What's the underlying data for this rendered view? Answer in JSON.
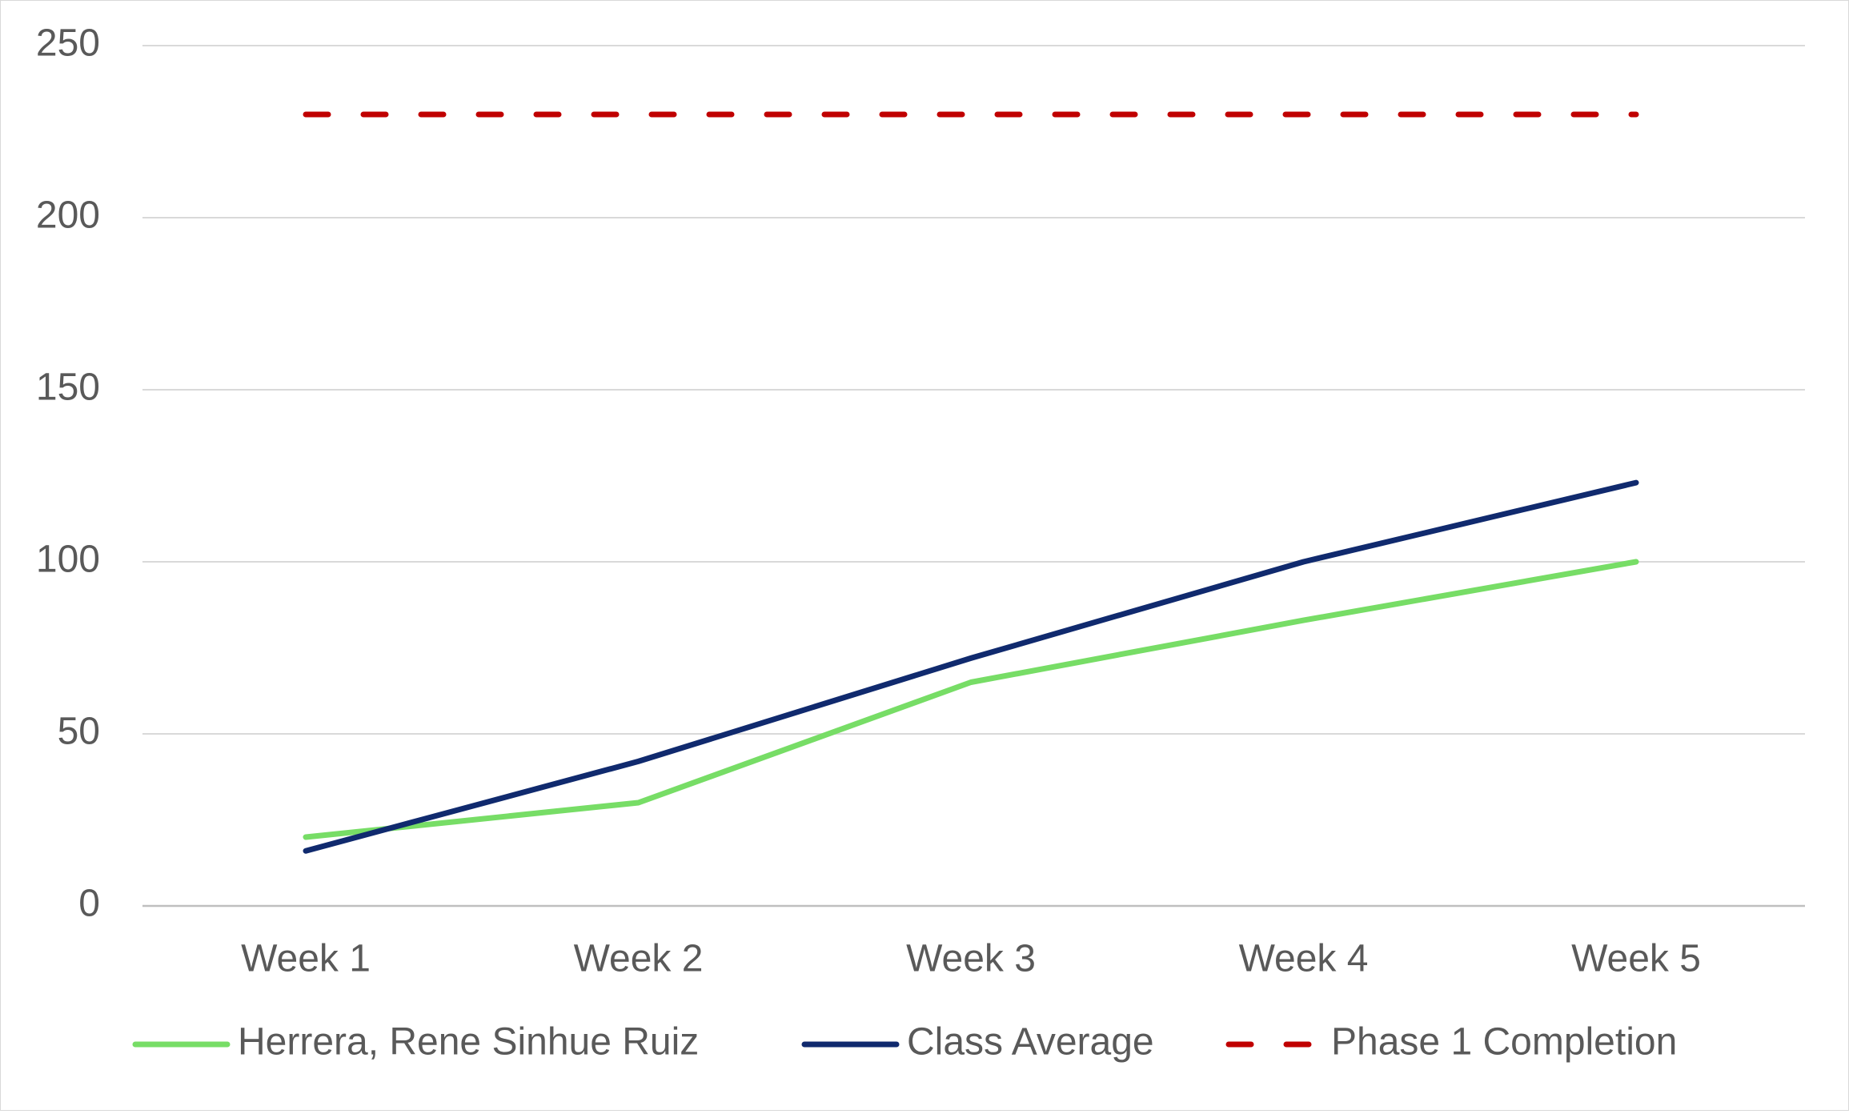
{
  "chart_data": {
    "type": "line",
    "categories": [
      "Week 1",
      "Week 2",
      "Week 3",
      "Week 4",
      "Week 5"
    ],
    "ylim": [
      0,
      250
    ],
    "yticks": [
      0,
      50,
      100,
      150,
      200,
      250
    ],
    "grid": true,
    "legend_position": "bottom",
    "series": [
      {
        "name": "Herrera, Rene Sinhue Ruiz",
        "values": [
          20,
          30,
          65,
          83,
          100
        ],
        "color": "#77dd66",
        "dashed": false
      },
      {
        "name": "Class Average",
        "values": [
          16,
          42,
          72,
          100,
          123
        ],
        "color": "#102a6e",
        "dashed": false
      },
      {
        "name": "Phase 1 Completion",
        "values": [
          230,
          230,
          230,
          230,
          230
        ],
        "color": "#c00000",
        "dashed": true
      }
    ]
  }
}
